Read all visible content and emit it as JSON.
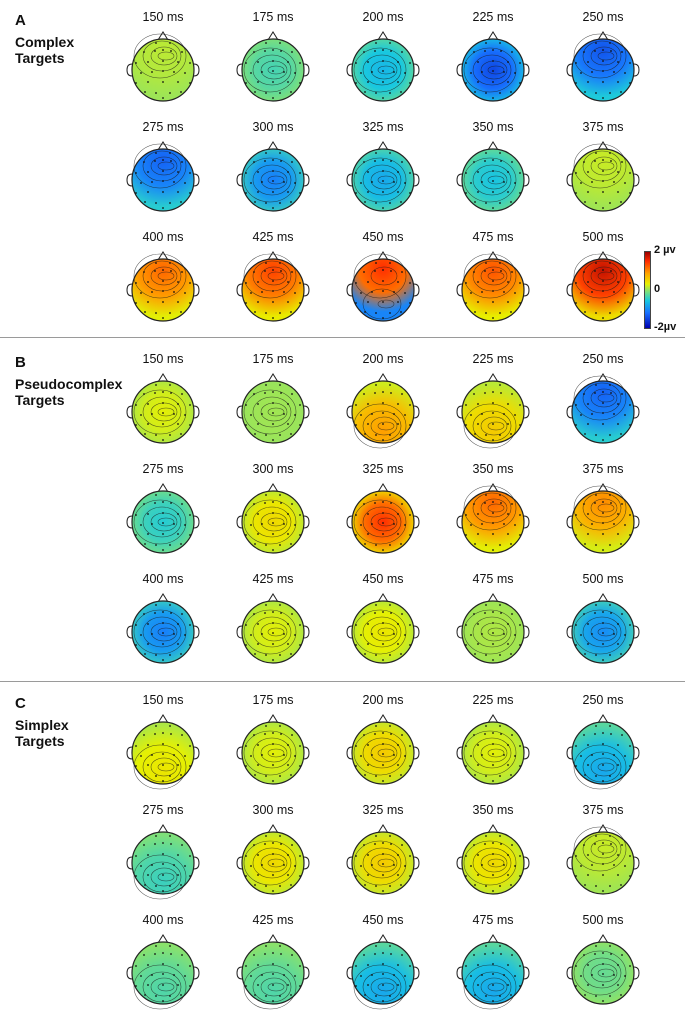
{
  "panels": [
    {
      "letter": "A",
      "title_lines": [
        "Complex",
        "Targets"
      ],
      "rows": [
        [
          {
            "time": "150 ms",
            "pattern": "front",
            "value": 0.15
          },
          {
            "time": "175 ms",
            "pattern": "center",
            "value": -0.35
          },
          {
            "time": "200 ms",
            "pattern": "center",
            "value": -0.7
          },
          {
            "time": "225 ms",
            "pattern": "uniform",
            "value": -1.5
          },
          {
            "time": "250 ms",
            "pattern": "front",
            "value": -1.4
          }
        ],
        [
          {
            "time": "275 ms",
            "pattern": "front",
            "value": -1.3
          },
          {
            "time": "300 ms",
            "pattern": "center",
            "value": -1.1
          },
          {
            "time": "325 ms",
            "pattern": "center",
            "value": -0.8
          },
          {
            "time": "350 ms",
            "pattern": "center",
            "value": -0.6
          },
          {
            "time": "375 ms",
            "pattern": "front",
            "value": 0.2
          }
        ],
        [
          {
            "time": "400 ms",
            "pattern": "front",
            "value": 1.2
          },
          {
            "time": "425 ms",
            "pattern": "front",
            "value": 1.4
          },
          {
            "time": "450 ms",
            "pattern": "frontback",
            "value": 1.5
          },
          {
            "time": "475 ms",
            "pattern": "front",
            "value": 1.3
          },
          {
            "time": "500 ms",
            "pattern": "front",
            "value": 1.8
          }
        ]
      ]
    },
    {
      "letter": "B",
      "title_lines": [
        "Pseudocomplex",
        "Targets"
      ],
      "rows": [
        [
          {
            "time": "150 ms",
            "pattern": "center",
            "value": 0.3
          },
          {
            "time": "175 ms",
            "pattern": "uniform",
            "value": 0.05
          },
          {
            "time": "200 ms",
            "pattern": "back",
            "value": 0.9
          },
          {
            "time": "225 ms",
            "pattern": "back",
            "value": 0.6
          },
          {
            "time": "250 ms",
            "pattern": "front",
            "value": -1.3
          }
        ],
        [
          {
            "time": "275 ms",
            "pattern": "center",
            "value": -0.5
          },
          {
            "time": "300 ms",
            "pattern": "center",
            "value": 0.5
          },
          {
            "time": "325 ms",
            "pattern": "center",
            "value": 1.5
          },
          {
            "time": "350 ms",
            "pattern": "front",
            "value": 1.2
          },
          {
            "time": "375 ms",
            "pattern": "front",
            "value": 1.0
          }
        ],
        [
          {
            "time": "400 ms",
            "pattern": "center",
            "value": -1.1
          },
          {
            "time": "425 ms",
            "pattern": "center",
            "value": 0.3
          },
          {
            "time": "450 ms",
            "pattern": "center",
            "value": 0.4
          },
          {
            "time": "475 ms",
            "pattern": "center",
            "value": 0.1
          },
          {
            "time": "500 ms",
            "pattern": "center",
            "value": -1.0
          }
        ]
      ]
    },
    {
      "letter": "C",
      "title_lines": [
        "Simplex",
        "Targets"
      ],
      "rows": [
        [
          {
            "time": "150 ms",
            "pattern": "back",
            "value": 0.4
          },
          {
            "time": "175 ms",
            "pattern": "uniform",
            "value": 0.3
          },
          {
            "time": "200 ms",
            "pattern": "uniform",
            "value": 0.6
          },
          {
            "time": "225 ms",
            "pattern": "center",
            "value": 0.3
          },
          {
            "time": "250 ms",
            "pattern": "back",
            "value": -0.8
          }
        ],
        [
          {
            "time": "275 ms",
            "pattern": "back",
            "value": -0.4
          },
          {
            "time": "300 ms",
            "pattern": "uniform",
            "value": 0.5
          },
          {
            "time": "325 ms",
            "pattern": "center",
            "value": 0.6
          },
          {
            "time": "350 ms",
            "pattern": "center",
            "value": 0.5
          },
          {
            "time": "375 ms",
            "pattern": "front",
            "value": 0.2
          }
        ],
        [
          {
            "time": "400 ms",
            "pattern": "back",
            "value": -0.3
          },
          {
            "time": "425 ms",
            "pattern": "back",
            "value": -0.3
          },
          {
            "time": "450 ms",
            "pattern": "back",
            "value": -0.8
          },
          {
            "time": "475 ms",
            "pattern": "back",
            "value": -0.8
          },
          {
            "time": "500 ms",
            "pattern": "center",
            "value": -0.2
          }
        ]
      ]
    }
  ],
  "colorbar": {
    "max_label": "2 µv",
    "mid_label": "0",
    "min_label": "-2µv"
  }
}
